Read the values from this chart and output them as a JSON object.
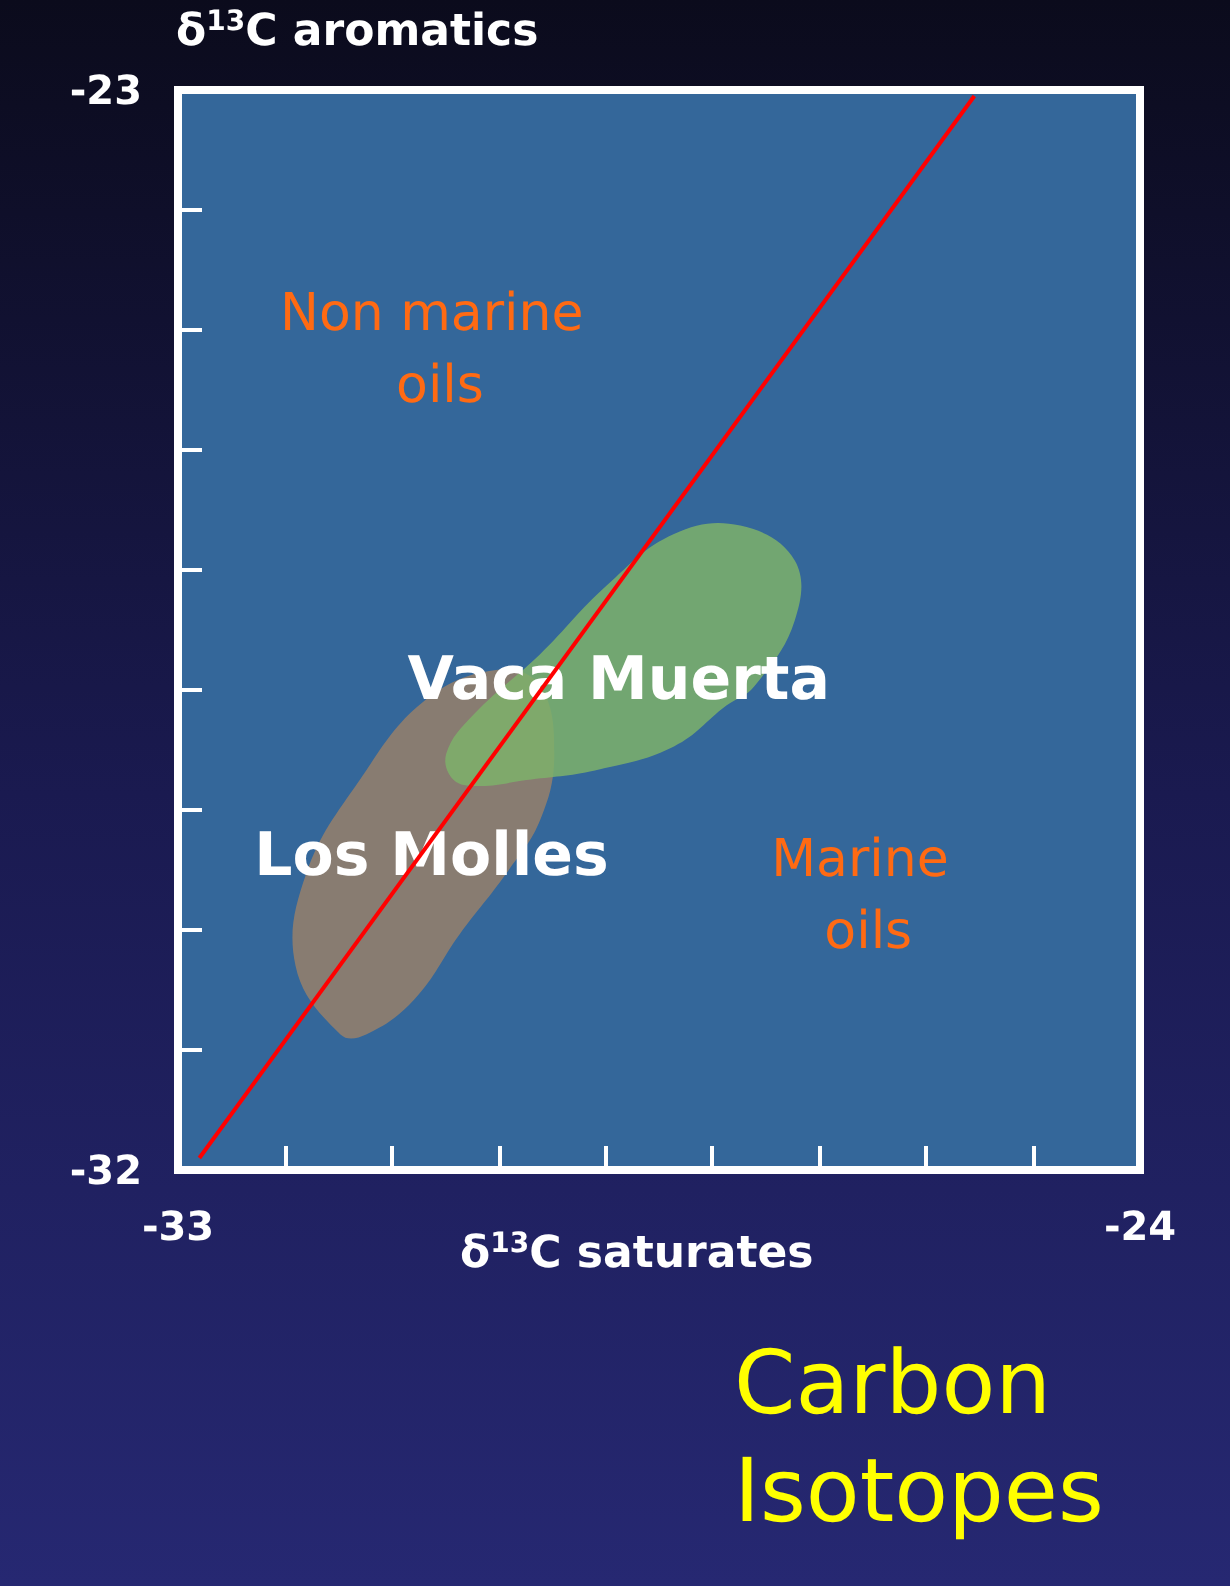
{
  "chart_data": {
    "type": "area",
    "title": "Carbon Isotopes",
    "xlabel": "δ$^{13}$C saturates",
    "ylabel": "δ$^{13}$C aromatics",
    "annotations": [
      "Non marine oils",
      "Marine oils"
    ],
    "xlim": [
      -33,
      -24
    ],
    "xticks": [
      -33,
      {
        "value": -32,
        "label": null
      },
      {
        "value": -31,
        "label": null
      },
      {
        "value": -30,
        "label": null
      },
      {
        "value": -29,
        "label": null
      },
      {
        "value": -28,
        "label": null
      },
      {
        "value": -27,
        "label": null
      },
      {
        "value": -26,
        "label": null
      },
      {
        "value": -25,
        "label": null
      },
      -24
    ],
    "ylim": [
      -32,
      -23
    ],
    "yticks": [
      -32,
      {
        "value": -31,
        "label": null
      },
      {
        "value": -30,
        "label": null
      },
      {
        "value": -29,
        "label": null
      },
      {
        "value": -28,
        "label": null
      },
      {
        "value": -27,
        "label": null
      },
      {
        "value": -26,
        "label": null
      },
      {
        "value": -25,
        "label": null
      },
      {
        "value": -24,
        "label": null
      },
      -23
    ],
    "grid": false,
    "legend": false,
    "series": [
      {
        "name": "Los Molles",
        "color": "#98806a",
        "x": [
          -31.48,
          -31.9,
          -31.8,
          -31.3,
          -30.68,
          -29.99,
          -29.61,
          -29.48,
          -29.61,
          -29.93,
          -30.36,
          -30.79,
          -31.24
        ],
        "values": [
          -30.87,
          -30.3,
          -29.53,
          -28.75,
          -28.08,
          -27.83,
          -27.97,
          -28.53,
          -29.08,
          -29.53,
          -30.03,
          -30.58,
          -30.87
        ]
      },
      {
        "name": "Vaca Muerta",
        "color": "#7eb26a",
        "x": [
          -30.42,
          -30.49,
          -30.23,
          -29.61,
          -28.99,
          -28.36,
          -27.74,
          -27.23,
          -27.23,
          -27.61,
          -27.87,
          -28.36,
          -29.1,
          -29.74,
          -30.17
        ],
        "values": [
          -28.75,
          -28.53,
          -28.2,
          -27.7,
          -27.13,
          -26.7,
          -26.63,
          -26.92,
          -27.42,
          -27.97,
          -28.13,
          -28.47,
          -28.67,
          -28.75,
          -28.8
        ]
      },
      {
        "type": "line",
        "color": "#ff0000",
        "marker": "none",
        "x": [
          -32.8,
          -25.55
        ],
        "values": [
          -31.9,
          -23.05
        ]
      }
    ]
  }
}
